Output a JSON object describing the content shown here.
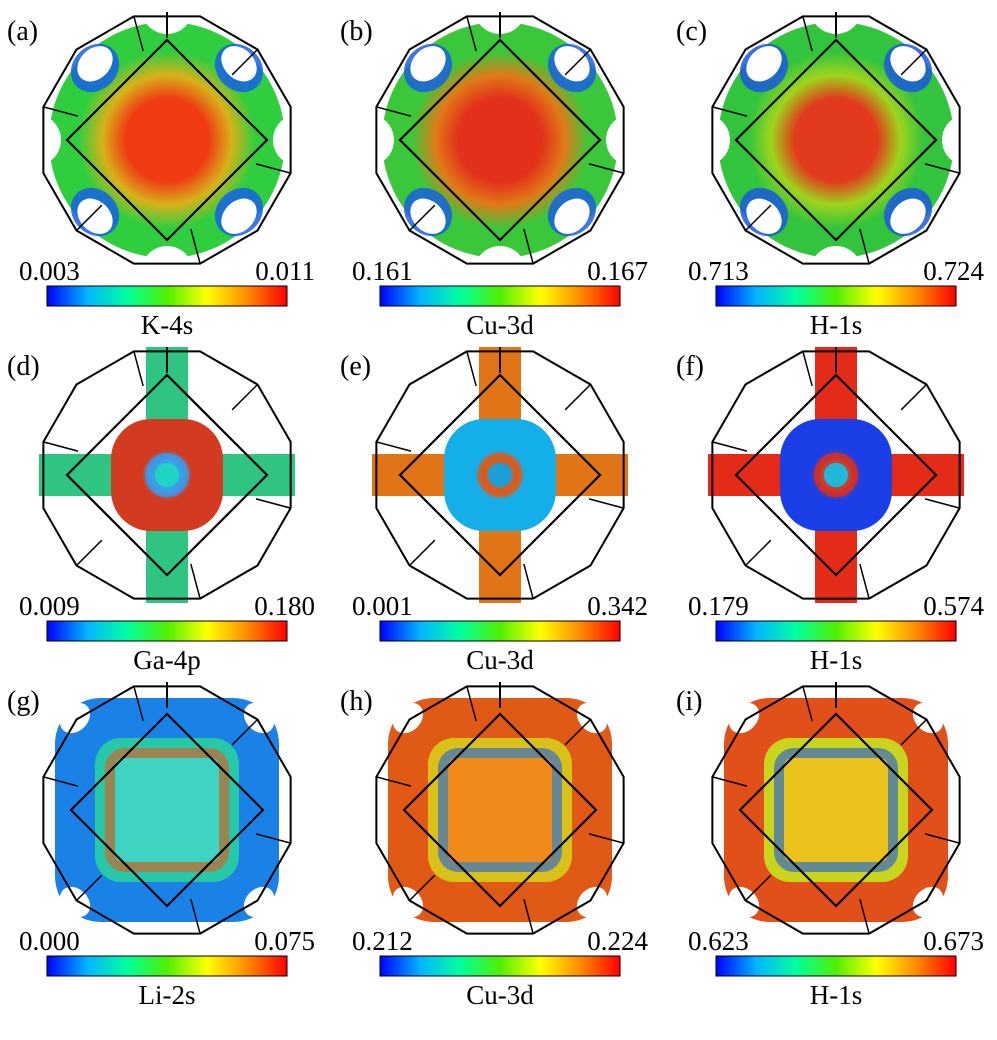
{
  "panels": [
    {
      "label": "(a)",
      "min": "0.003",
      "max": "0.011",
      "orbital": "K-4s",
      "shape": "network",
      "colors": {
        "surface": "#2fce3f",
        "center": "#ee3b12",
        "mid": "#d7b11a",
        "edge": "#1560e6"
      }
    },
    {
      "label": "(b)",
      "min": "0.161",
      "max": "0.167",
      "orbital": "Cu-3d",
      "shape": "network",
      "colors": {
        "surface": "#3bc73a",
        "center": "#e2301a",
        "mid": "#e07a18",
        "edge": "#1a5fe0"
      }
    },
    {
      "label": "(c)",
      "min": "0.713",
      "max": "0.724",
      "orbital": "H-1s",
      "shape": "network",
      "colors": {
        "surface": "#31c43c",
        "center": "#e13a1c",
        "mid": "#9ed41c",
        "edge": "#1b58de"
      }
    },
    {
      "label": "(d)",
      "min": "0.009",
      "max": "0.180",
      "orbital": "Ga-4p",
      "shape": "sphere",
      "colors": {
        "sphere": "#d23b1f",
        "tubes": "#2fc482",
        "core": "#1fd4c4",
        "rim": "#3a9bea"
      }
    },
    {
      "label": "(e)",
      "min": "0.001",
      "max": "0.342",
      "orbital": "Cu-3d",
      "shape": "sphere",
      "colors": {
        "sphere": "#14aee8",
        "tubes": "#e07416",
        "core": "#1aa0d6",
        "rim": "#e05a18"
      }
    },
    {
      "label": "(f)",
      "min": "0.179",
      "max": "0.574",
      "orbital": "H-1s",
      "shape": "sphere",
      "colors": {
        "sphere": "#1a3fe6",
        "tubes": "#e32b18",
        "core": "#1fb8d8",
        "rim": "#d8301c"
      }
    },
    {
      "label": "(g)",
      "min": "0.000",
      "max": "0.075",
      "orbital": "Li-2s",
      "shape": "box",
      "colors": {
        "surface": "#1a82e6",
        "inner": "#3fd3c2",
        "ring": "#27c8a8",
        "hot": "#e85618"
      }
    },
    {
      "label": "(h)",
      "min": "0.212",
      "max": "0.224",
      "orbital": "Cu-3d",
      "shape": "box",
      "colors": {
        "surface": "#e05a16",
        "inner": "#f08a1a",
        "ring": "#d8c21a",
        "hot": "#1d60e4"
      }
    },
    {
      "label": "(i)",
      "min": "0.623",
      "max": "0.673",
      "orbital": "H-1s",
      "shape": "box",
      "colors": {
        "surface": "#e2501a",
        "inner": "#e9c21c",
        "ring": "#c8d51c",
        "hot": "#1c58e2"
      }
    }
  ],
  "colormap": [
    "#0000ff",
    "#00b4ff",
    "#00ffa0",
    "#50f000",
    "#ffff00",
    "#ff8c00",
    "#ff0000"
  ]
}
